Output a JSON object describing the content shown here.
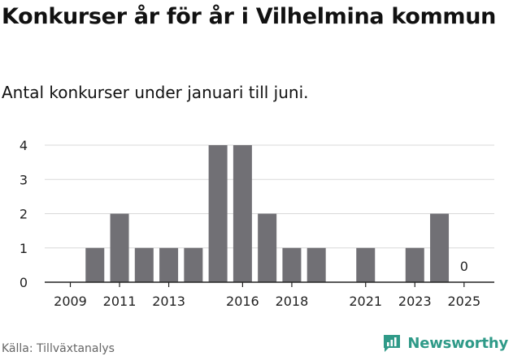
{
  "title": "Konkurser år för år i Vilhelmina kommun",
  "subtitle": "Antal konkurser under januari till juni.",
  "source": "Källa: Tillväxtanalys",
  "brand": {
    "name": "Newsworthy",
    "icon": "newsworthy-logo-icon"
  },
  "colors": {
    "bar": "#717075",
    "grid": "#d9d9d9",
    "axis": "#222222",
    "brand": "#2f9a88"
  },
  "chart_data": {
    "type": "bar",
    "categories": [
      "2009",
      "2010",
      "2011",
      "2012",
      "2013",
      "2014",
      "2015",
      "2016",
      "2017",
      "2018",
      "2019",
      "2020",
      "2021",
      "2022",
      "2023",
      "2024",
      "2025"
    ],
    "values": [
      0,
      1,
      2,
      1,
      1,
      1,
      4,
      4,
      2,
      1,
      1,
      0,
      1,
      0,
      1,
      2,
      0
    ],
    "tick_labels_x": [
      "2009",
      "2011",
      "2013",
      "2016",
      "2018",
      "2021",
      "2023",
      "2025"
    ],
    "yticks": [
      0,
      1,
      2,
      3,
      4
    ],
    "ylim": [
      0,
      4.3
    ],
    "annotations": [
      {
        "category": "2025",
        "text": "0"
      }
    ],
    "grid": true,
    "legend": "none"
  }
}
